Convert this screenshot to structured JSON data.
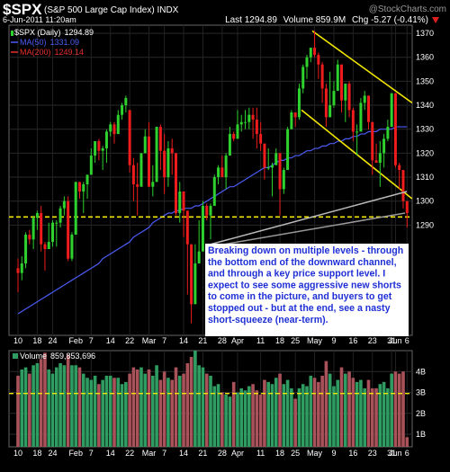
{
  "header": {
    "title": "$SPX",
    "subtitle": "(S&P 500 Large Cap Index) INDX",
    "source": "@StockCharts.com",
    "date": "6-Jun-2011 11:20am",
    "last": "Last 1294.89",
    "volume": "Volume 859.9M",
    "change": "Chg -5.27 (-0.41%)"
  },
  "chart_data": [
    {
      "type": "candlestick",
      "name": "$SPX (Daily)",
      "last": 1294.89,
      "categories": [
        "10",
        null,
        null,
        null,
        null,
        "18",
        null,
        null,
        null,
        "24",
        null,
        null,
        null,
        null,
        null,
        "Feb",
        null,
        null,
        null,
        "7",
        null,
        null,
        null,
        null,
        "14",
        null,
        null,
        null,
        null,
        "22",
        null,
        null,
        null,
        null,
        "Mar",
        null,
        null,
        null,
        "7",
        null,
        null,
        null,
        null,
        "14",
        null,
        null,
        null,
        null,
        "21",
        null,
        null,
        null,
        null,
        "28",
        null,
        null,
        null,
        "Apr",
        null,
        null,
        null,
        null,
        null,
        "11",
        null,
        null,
        null,
        null,
        "18",
        null,
        null,
        null,
        "25",
        null,
        null,
        null,
        null,
        "May",
        null,
        null,
        null,
        null,
        "9",
        null,
        null,
        null,
        null,
        "16",
        null,
        null,
        null,
        null,
        "23",
        null,
        null,
        null,
        null,
        "31",
        "Jun",
        null,
        null,
        "6"
      ],
      "open": [
        1272,
        1270,
        1274,
        1286,
        1284,
        1293,
        1295,
        1282,
        1280,
        1283,
        1291,
        1291,
        1297,
        1300,
        1276,
        1286,
        1308,
        1304,
        1307,
        1311,
        1319,
        1325,
        1321,
        1322,
        1329,
        1332,
        1328,
        1336,
        1340,
        1338,
        1315,
        1307,
        1306,
        1320,
        1327,
        1306,
        1308,
        1331,
        1321,
        1310,
        1322,
        1320,
        1295,
        1304,
        1296,
        1282,
        1257,
        1274,
        1279,
        1298,
        1294,
        1298,
        1310,
        1314,
        1310,
        1319,
        1328,
        1326,
        1332,
        1333,
        1333,
        1336,
        1334,
        1328,
        1324,
        1314,
        1314,
        1315,
        1320,
        1305,
        1313,
        1330,
        1337,
        1335,
        1347,
        1356,
        1360,
        1364,
        1361,
        1357,
        1347,
        1335,
        1340,
        1346,
        1357,
        1342,
        1349,
        1338,
        1329,
        1329,
        1341,
        1344,
        1333,
        1317,
        1316,
        1320,
        1326,
        1331,
        1345,
        1315,
        1313,
        1300
      ],
      "high": [
        1276,
        1277,
        1287,
        1288,
        1294,
        1296,
        1298,
        1283,
        1291,
        1292,
        1292,
        1298,
        1302,
        1302,
        1287,
        1308,
        1308,
        1308,
        1311,
        1322,
        1325,
        1326,
        1323,
        1330,
        1333,
        1333,
        1338,
        1341,
        1344,
        1338,
        1318,
        1316,
        1320,
        1330,
        1333,
        1315,
        1331,
        1332,
        1328,
        1325,
        1326,
        1320,
        1308,
        1304,
        1296,
        1282,
        1282,
        1292,
        1300,
        1299,
        1299,
        1311,
        1315,
        1319,
        1320,
        1331,
        1329,
        1338,
        1336,
        1338,
        1339,
        1339,
        1339,
        1333,
        1324,
        1322,
        1316,
        1322,
        1320,
        1314,
        1331,
        1338,
        1337,
        1349,
        1357,
        1361,
        1364,
        1371,
        1362,
        1358,
        1349,
        1354,
        1350,
        1359,
        1357,
        1349,
        1350,
        1339,
        1332,
        1343,
        1346,
        1344,
        1333,
        1324,
        1325,
        1328,
        1334,
        1345,
        1345,
        1316,
        1313,
        1300
      ],
      "low": [
        1262,
        1267,
        1272,
        1282,
        1280,
        1288,
        1279,
        1271,
        1280,
        1281,
        1281,
        1289,
        1294,
        1275,
        1275,
        1286,
        1301,
        1295,
        1301,
        1311,
        1316,
        1317,
        1313,
        1316,
        1327,
        1324,
        1328,
        1334,
        1337,
        1312,
        1300,
        1294,
        1306,
        1320,
        1306,
        1302,
        1308,
        1313,
        1303,
        1306,
        1311,
        1294,
        1291,
        1285,
        1261,
        1249,
        1257,
        1274,
        1279,
        1292,
        1284,
        1298,
        1307,
        1310,
        1305,
        1319,
        1325,
        1326,
        1329,
        1330,
        1330,
        1326,
        1322,
        1321,
        1309,
        1313,
        1302,
        1315,
        1294,
        1303,
        1313,
        1330,
        1331,
        1334,
        1345,
        1351,
        1358,
        1360,
        1351,
        1341,
        1331,
        1335,
        1339,
        1346,
        1337,
        1333,
        1335,
        1325,
        1319,
        1329,
        1338,
        1330,
        1311,
        1316,
        1306,
        1314,
        1325,
        1331,
        1314,
        1305,
        1297,
        1289
      ],
      "close": [
        1270,
        1274,
        1286,
        1284,
        1293,
        1295,
        1282,
        1280,
        1283,
        1291,
        1291,
        1297,
        1300,
        1276,
        1286,
        1308,
        1304,
        1307,
        1311,
        1319,
        1325,
        1321,
        1322,
        1329,
        1332,
        1328,
        1336,
        1340,
        1343,
        1315,
        1307,
        1306,
        1320,
        1327,
        1306,
        1308,
        1331,
        1321,
        1310,
        1322,
        1320,
        1295,
        1304,
        1296,
        1282,
        1257,
        1274,
        1279,
        1298,
        1294,
        1298,
        1310,
        1314,
        1310,
        1319,
        1328,
        1326,
        1332,
        1333,
        1333,
        1336,
        1334,
        1328,
        1324,
        1314,
        1314,
        1315,
        1320,
        1305,
        1313,
        1330,
        1337,
        1335,
        1347,
        1356,
        1360,
        1364,
        1361,
        1357,
        1347,
        1335,
        1340,
        1346,
        1357,
        1342,
        1349,
        1338,
        1329,
        1329,
        1341,
        1344,
        1333,
        1317,
        1316,
        1320,
        1326,
        1331,
        1345,
        1315,
        1313,
        1300,
        1295
      ],
      "up_color": "#2ed12e",
      "down_color": "#ee1c1c",
      "ylim": [
        1244,
        1373.4
      ],
      "yticks": [
        1290,
        1300,
        1310,
        1320,
        1330,
        1340,
        1350,
        1360,
        1370
      ],
      "grid": true,
      "series": [
        {
          "name": "MA(50)",
          "last": 1331.09,
          "color": "#4b5cf5",
          "values": [
            1253,
            1254,
            1255,
            1256,
            1257,
            1258,
            1259,
            1260,
            1261,
            1262,
            1263,
            1264,
            1265,
            1266,
            1267,
            1268,
            1269,
            1270,
            1271,
            1272,
            1273,
            1274,
            1276,
            1277,
            1278,
            1279,
            1280,
            1281,
            1282,
            1283,
            1285,
            1286,
            1287,
            1288,
            1289,
            1291,
            1292,
            1293,
            1294,
            1295,
            1295,
            1296,
            1296,
            1297,
            1297,
            1297,
            1298,
            1298,
            1299,
            1300,
            1301,
            1302,
            1303,
            1304,
            1305,
            1306,
            1306,
            1307,
            1308,
            1309,
            1310,
            1311,
            1312,
            1313,
            1314,
            1314,
            1315,
            1316,
            1317,
            1317,
            1318,
            1318,
            1319,
            1319,
            1320,
            1321,
            1321,
            1322,
            1322,
            1323,
            1323,
            1324,
            1324,
            1325,
            1325,
            1326,
            1326,
            1327,
            1327,
            1328,
            1328,
            1329,
            1329,
            1329,
            1330,
            1330,
            1330,
            1330,
            1331,
            1331,
            1331,
            1331
          ]
        },
        {
          "name": "MA(200)",
          "last": 1249.14,
          "color": "#e83030"
        }
      ],
      "support": 1293.4,
      "support_color": "#f2e600",
      "channel": [
        {
          "x": [
            76.4,
            102.3
          ],
          "y": [
            1371,
            1341
          ]
        },
        {
          "x": [
            73.6,
            102.3
          ],
          "y": [
            1338,
            1301
          ]
        }
      ],
      "annotation": [
        "Breaking down on multiple levels - through",
        "the bottom end of the downward channel,",
        "and through a key price support level. I",
        "expect to see some aggressive new shorts",
        "to come in the picture, and buyers to get",
        "stopped out - but at the end,  see a nasty",
        "short-squeeze (near-term)."
      ]
    },
    {
      "type": "bar",
      "name": "Volume",
      "last": "859,853,696",
      "categories": [
        "10",
        null,
        null,
        null,
        null,
        "18",
        null,
        null,
        null,
        "24",
        null,
        null,
        null,
        null,
        null,
        "Feb",
        null,
        null,
        null,
        "7",
        null,
        null,
        null,
        null,
        "14",
        null,
        null,
        null,
        null,
        "22",
        null,
        null,
        null,
        null,
        "Mar",
        null,
        null,
        null,
        "7",
        null,
        null,
        null,
        null,
        "14",
        null,
        null,
        null,
        null,
        "21",
        null,
        null,
        null,
        null,
        "28",
        null,
        null,
        null,
        "Apr",
        null,
        null,
        null,
        null,
        null,
        "11",
        null,
        null,
        null,
        null,
        "18",
        null,
        null,
        null,
        "25",
        null,
        null,
        null,
        null,
        "May",
        null,
        null,
        null,
        null,
        "9",
        null,
        null,
        null,
        null,
        "16",
        null,
        null,
        null,
        null,
        "23",
        null,
        null,
        null,
        null,
        "31",
        "Jun",
        null,
        null,
        "6"
      ],
      "values": [
        3.8,
        4.1,
        4.2,
        3.9,
        4.3,
        4.4,
        4.6,
        4.9,
        4.1,
        3.9,
        4.2,
        4.4,
        4.3,
        4.8,
        4.3,
        4.3,
        4.2,
        3.9,
        3.7,
        3.6,
        3.8,
        3.4,
        3.6,
        3.8,
        3.8,
        3.7,
        3.7,
        3.4,
        3.5,
        3.9,
        4.2,
        4.1,
        4.2,
        3.9,
        4.1,
        3.8,
        4.3,
        3.6,
        4.0,
        3.7,
        3.6,
        4.2,
        3.8,
        3.9,
        4.4,
        4.7,
        5.0,
        4.3,
        4.2,
        3.9,
        3.8,
        3.3,
        3.4,
        3.0,
        2.9,
        2.8,
        3.5,
        3.0,
        3.2,
        3.1,
        3.3,
        3.4,
        3.1,
        2.9,
        3.6,
        3.5,
        3.4,
        3.7,
        3.9,
        3.4,
        3.6,
        3.2,
        2.7,
        3.2,
        3.4,
        3.3,
        3.8,
        3.7,
        3.5,
        3.8,
        4.5,
        3.9,
        3.3,
        3.6,
        4.2,
        3.9,
        4.0,
        3.7,
        3.5,
        3.6,
        3.2,
        3.6,
        3.2,
        3.2,
        3.4,
        3.5,
        3.2,
        3.9,
        4.0,
        3.9,
        4.0,
        0.86
      ],
      "up_color": "#2f9d62",
      "down_color": "#a9525a",
      "ylim": [
        0.4,
        5.0
      ],
      "yticks": [
        {
          "value": 1,
          "label": "1B"
        },
        {
          "value": 2,
          "label": "2B"
        },
        {
          "value": 3,
          "label": "3B"
        },
        {
          "value": 4,
          "label": "4B"
        }
      ],
      "grid": true,
      "reference": 2.95,
      "reference_color": "#f2e600"
    }
  ]
}
